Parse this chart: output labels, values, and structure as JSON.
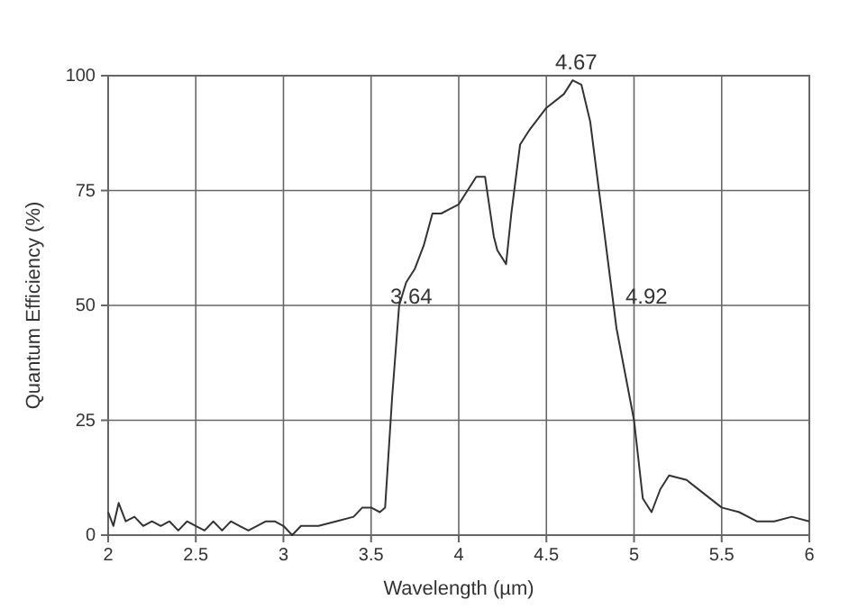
{
  "chart_data": {
    "type": "line",
    "xlabel": "Wavelength (µm)",
    "ylabel": "Quantum Efficiency (%)",
    "xlim": [
      2,
      6
    ],
    "xticks": [
      2,
      2.5,
      3,
      3.5,
      4,
      4.5,
      5,
      5.5,
      6
    ],
    "ylim": [
      0,
      100
    ],
    "yticks": [
      0,
      25,
      50,
      75,
      100
    ],
    "grid": true,
    "x": [
      2,
      2.03,
      2.06,
      2.1,
      2.15,
      2.2,
      2.25,
      2.3,
      2.35,
      2.4,
      2.45,
      2.5,
      2.55,
      2.6,
      2.65,
      2.7,
      2.75,
      2.8,
      2.9,
      2.95,
      3,
      3.05,
      3.1,
      3.2,
      3.3,
      3.4,
      3.45,
      3.5,
      3.55,
      3.58,
      3.62,
      3.66,
      3.7,
      3.75,
      3.8,
      3.85,
      3.9,
      3.95,
      4,
      4.05,
      4.1,
      4.15,
      4.2,
      4.22,
      4.27,
      4.3,
      4.35,
      4.4,
      4.5,
      4.6,
      4.65,
      4.7,
      4.75,
      4.8,
      4.85,
      4.9,
      4.95,
      5,
      5.05,
      5.1,
      5.15,
      5.2,
      5.3,
      5.4,
      5.5,
      5.6,
      5.7,
      5.8,
      5.9,
      6
    ],
    "series": [
      {
        "color": "#333333",
        "values": [
          5,
          2,
          7,
          3,
          4,
          2,
          3,
          2,
          3,
          1,
          3,
          2,
          1,
          3,
          1,
          3,
          2,
          1,
          3,
          3,
          2,
          0,
          2,
          2,
          3,
          4,
          6,
          6,
          5,
          6,
          30,
          50,
          55,
          58,
          63,
          70,
          70,
          71,
          72,
          75,
          78,
          78,
          65,
          62,
          59,
          70,
          85,
          88,
          93,
          96,
          99,
          98,
          90,
          75,
          60,
          45,
          35,
          25,
          8,
          5,
          10,
          13,
          12,
          9,
          6,
          5,
          3,
          3,
          4,
          3
        ]
      }
    ],
    "annotations": [
      {
        "text": "3.64",
        "x": 3.64,
        "y": 50
      },
      {
        "text": "4.67",
        "x": 4.67,
        "y": 99
      },
      {
        "text": "4.92",
        "x": 4.92,
        "y": 50
      }
    ]
  }
}
